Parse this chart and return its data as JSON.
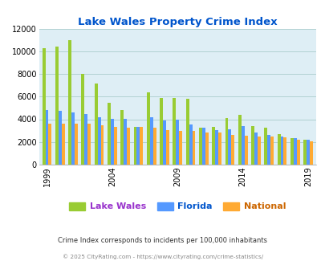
{
  "title": "Lake Wales Property Crime Index",
  "years": [
    1999,
    2000,
    2001,
    2002,
    2003,
    2004,
    2005,
    2006,
    2007,
    2008,
    2009,
    2010,
    2011,
    2012,
    2013,
    2014,
    2015,
    2016,
    2017,
    2018,
    2019
  ],
  "lake_wales": [
    10300,
    10450,
    11000,
    8050,
    7200,
    5450,
    4800,
    3300,
    6400,
    5900,
    5900,
    5800,
    3250,
    3300,
    4100,
    4400,
    3400,
    3250,
    2700,
    2300,
    2150
  ],
  "florida": [
    4850,
    4750,
    4600,
    4450,
    4150,
    4050,
    4050,
    3300,
    4200,
    3900,
    3950,
    3550,
    3250,
    3050,
    3100,
    3400,
    2800,
    2600,
    2500,
    2350,
    2150
  ],
  "national": [
    3600,
    3600,
    3600,
    3600,
    3500,
    3300,
    3250,
    3300,
    3250,
    3050,
    3000,
    2950,
    2850,
    2800,
    2600,
    2550,
    2500,
    2450,
    2400,
    2150,
    2050
  ],
  "lake_wales_color": "#99cc33",
  "florida_color": "#5599ff",
  "national_color": "#ffaa33",
  "plot_bg": "#deeef5",
  "title_color": "#0055cc",
  "legend_lw_color": "#9933cc",
  "legend_fl_color": "#0055cc",
  "legend_nat_color": "#cc6600",
  "subtitle": "Crime Index corresponds to incidents per 100,000 inhabitants",
  "footer": "© 2025 CityRating.com - https://www.cityrating.com/crime-statistics/",
  "ylim": [
    0,
    12000
  ],
  "yticks": [
    0,
    2000,
    4000,
    6000,
    8000,
    10000,
    12000
  ],
  "xtick_years": [
    1999,
    2004,
    2009,
    2014,
    2019
  ]
}
